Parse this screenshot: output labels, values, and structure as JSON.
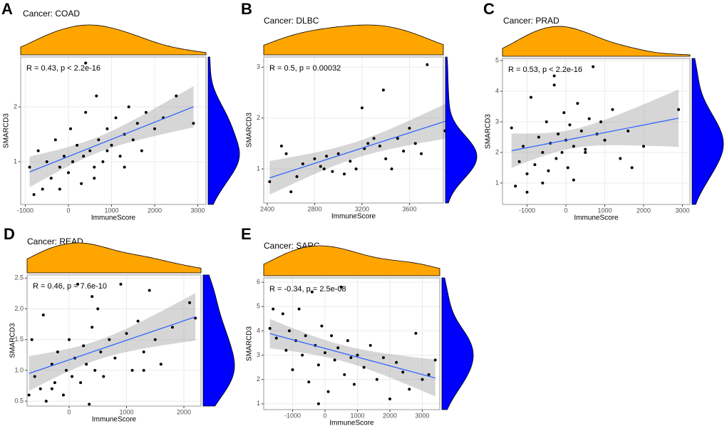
{
  "chart_data": [
    {
      "type": "scatter",
      "panel_label": "A",
      "title": "Cancer: COAD",
      "annotation": "R = 0.43, p < 2.2e-16",
      "x_label": "ImmuneScore",
      "y_label": "SMARCD3",
      "x": [
        -900,
        -700,
        -600,
        -500,
        -400,
        -300,
        -200,
        -100,
        0,
        50,
        100,
        200,
        300,
        350,
        400,
        500,
        600,
        650,
        700,
        800,
        900,
        1000,
        1100,
        1200,
        1300,
        1400,
        1500,
        1600,
        1700,
        1800,
        2000,
        2200,
        2500,
        2900,
        -800,
        -200,
        400,
        600,
        900,
        1300
      ],
      "y": [
        0.9,
        1.2,
        0.5,
        1.0,
        0.7,
        1.4,
        0.9,
        1.1,
        0.8,
        1.6,
        1.0,
        1.3,
        0.6,
        1.1,
        1.9,
        1.2,
        0.9,
        2.2,
        1.4,
        1.0,
        1.6,
        1.3,
        1.8,
        1.1,
        1.5,
        2.0,
        1.4,
        1.7,
        1.2,
        1.9,
        1.6,
        1.8,
        2.2,
        1.7,
        0.4,
        0.5,
        2.8,
        0.7,
        1.2,
        0.9
      ],
      "xlim": [
        -1107,
        3190
      ],
      "ylim": [
        0.22,
        2.91
      ],
      "xticks": [
        -1000,
        0,
        1000,
        2000,
        3000
      ],
      "yticks": [
        1,
        2
      ],
      "grid": true,
      "point_color": "#000000",
      "line_color": "#3366ff",
      "band_color": "#999999",
      "top_density_color": "#ffa500",
      "right_density_color": "#0000ff"
    },
    {
      "type": "scatter",
      "panel_label": "B",
      "title": "Cancer: DLBC",
      "annotation": "R = 0.5, p = 0.00032",
      "x_label": "ImmuneScore",
      "y_label": "SMARCD3",
      "x": [
        2420,
        2520,
        2560,
        2600,
        2650,
        2700,
        2800,
        2850,
        2880,
        2900,
        2950,
        3000,
        3050,
        3100,
        3150,
        3200,
        3220,
        3250,
        3300,
        3350,
        3380,
        3400,
        3450,
        3500,
        3550,
        3600,
        3650,
        3700,
        3750,
        3900
      ],
      "y": [
        0.75,
        1.45,
        1.3,
        0.55,
        0.85,
        1.1,
        1.2,
        1.05,
        1.0,
        1.25,
        0.95,
        1.3,
        0.9,
        1.15,
        1.0,
        2.2,
        1.4,
        1.5,
        1.6,
        1.45,
        2.55,
        1.2,
        1.0,
        1.6,
        1.35,
        1.8,
        1.5,
        1.3,
        3.05,
        1.75
      ],
      "xlim": [
        2370,
        3886
      ],
      "ylim": [
        0.33,
        3.2
      ],
      "xticks": [
        2400,
        2800,
        3200,
        3600
      ],
      "yticks": [
        1,
        2,
        3
      ],
      "grid": true,
      "point_color": "#000000",
      "line_color": "#3366ff",
      "band_color": "#999999",
      "top_density_color": "#ffa500",
      "right_density_color": "#0000ff"
    },
    {
      "type": "scatter",
      "panel_label": "C",
      "title": "Cancer: PRAD",
      "annotation": "R = 0.53, p < 2.2e-16",
      "x_label": "ImmuneScore",
      "y_label": "SMARCD3",
      "x": [
        -1400,
        -1300,
        -1200,
        -1100,
        -1000,
        -900,
        -800,
        -700,
        -600,
        -500,
        -450,
        -400,
        -300,
        -250,
        -200,
        -100,
        -50,
        0,
        50,
        100,
        200,
        300,
        400,
        500,
        600,
        700,
        800,
        900,
        1000,
        1200,
        1400,
        1600,
        1700,
        2000,
        2900,
        -1000,
        -600,
        -300,
        200,
        500
      ],
      "y": [
        2.8,
        0.9,
        1.7,
        2.2,
        1.3,
        3.8,
        1.6,
        2.5,
        2.0,
        3.0,
        1.4,
        2.3,
        4.2,
        1.8,
        2.6,
        2.0,
        3.3,
        2.4,
        1.5,
        2.9,
        2.2,
        3.6,
        2.7,
        2.1,
        3.1,
        4.8,
        2.6,
        3.0,
        2.4,
        3.4,
        1.8,
        2.7,
        1.5,
        2.2,
        3.4,
        0.7,
        1.0,
        4.5,
        1.1,
        2.0
      ],
      "xlim": [
        -1633,
        3193
      ],
      "ylim": [
        0.3,
        5.07
      ],
      "xticks": [
        -1000,
        0,
        1000,
        2000,
        3000
      ],
      "yticks": [
        1,
        2,
        3,
        4,
        5
      ],
      "grid": true,
      "point_color": "#000000",
      "line_color": "#3366ff",
      "band_color": "#999999",
      "top_density_color": "#ffa500",
      "right_density_color": "#0000ff"
    },
    {
      "type": "scatter",
      "panel_label": "D",
      "title": "Cancer: READ",
      "annotation": "R = 0.46, p = 7.6e-10",
      "x_label": "ImmuneScore",
      "y_label": "SMARCD3",
      "x": [
        -700,
        -650,
        -600,
        -500,
        -450,
        -400,
        -300,
        -250,
        -200,
        -100,
        -50,
        0,
        50,
        100,
        150,
        200,
        250,
        300,
        350,
        400,
        450,
        500,
        550,
        600,
        700,
        800,
        900,
        1000,
        1100,
        1200,
        1300,
        1400,
        1500,
        1600,
        1800,
        2100,
        2200,
        400,
        1300,
        -300
      ],
      "y": [
        0.6,
        1.5,
        0.9,
        0.7,
        1.9,
        0.5,
        1.1,
        0.8,
        1.3,
        0.6,
        1.0,
        1.5,
        0.9,
        1.2,
        2.4,
        0.8,
        1.4,
        1.1,
        0.45,
        1.7,
        1.0,
        2.0,
        1.3,
        0.9,
        1.5,
        1.2,
        2.4,
        1.6,
        1.0,
        1.8,
        1.3,
        2.3,
        1.5,
        1.1,
        1.7,
        2.1,
        1.85,
        2.2,
        1.0,
        0.7
      ],
      "xlim": [
        -733,
        2298
      ],
      "ylim": [
        0.42,
        2.55
      ],
      "xticks": [
        0,
        1000,
        2000
      ],
      "yticks": [
        0.5,
        {
          "value": 1,
          "label": "1.0"
        },
        1.5,
        {
          "value": 2,
          "label": "2.0"
        },
        2.5
      ],
      "grid": true,
      "point_color": "#000000",
      "line_color": "#3366ff",
      "band_color": "#999999",
      "top_density_color": "#ffa500",
      "right_density_color": "#0000ff"
    },
    {
      "type": "scatter",
      "panel_label": "E",
      "title": "Cancer: SARC",
      "annotation": "R = -0.34, p = 2.5e-08",
      "x_label": "ImmuneScore",
      "y_label": "SMARCD3",
      "x": [
        -1700,
        -1600,
        -1500,
        -1300,
        -1200,
        -1100,
        -1000,
        -900,
        -800,
        -700,
        -600,
        -500,
        -400,
        -300,
        -200,
        -100,
        0,
        100,
        200,
        300,
        400,
        500,
        600,
        700,
        800,
        900,
        1000,
        1200,
        1400,
        1600,
        1800,
        2000,
        2200,
        2400,
        2600,
        2800,
        3000,
        3200,
        3400,
        -200
      ],
      "y": [
        4.1,
        4.9,
        3.7,
        4.7,
        3.2,
        4.0,
        2.4,
        3.6,
        4.9,
        3.0,
        3.8,
        1.9,
        5.6,
        3.4,
        2.6,
        4.2,
        3.1,
        1.5,
        3.8,
        2.8,
        3.3,
        5.8,
        2.2,
        3.6,
        2.9,
        1.8,
        3.0,
        2.5,
        3.4,
        2.0,
        2.9,
        1.2,
        2.7,
        2.3,
        1.6,
        3.9,
        2.0,
        2.2,
        2.8,
        1.0
      ],
      "xlim": [
        -1890,
        3538
      ],
      "ylim": [
        0.76,
        6.18
      ],
      "xticks": [
        -1000,
        0,
        1000,
        2000,
        3000
      ],
      "yticks": [
        1,
        2,
        3,
        4,
        5,
        6
      ],
      "grid": true,
      "point_color": "#000000",
      "line_color": "#3366ff",
      "band_color": "#999999",
      "top_density_color": "#ffa500",
      "right_density_color": "#0000ff"
    }
  ]
}
